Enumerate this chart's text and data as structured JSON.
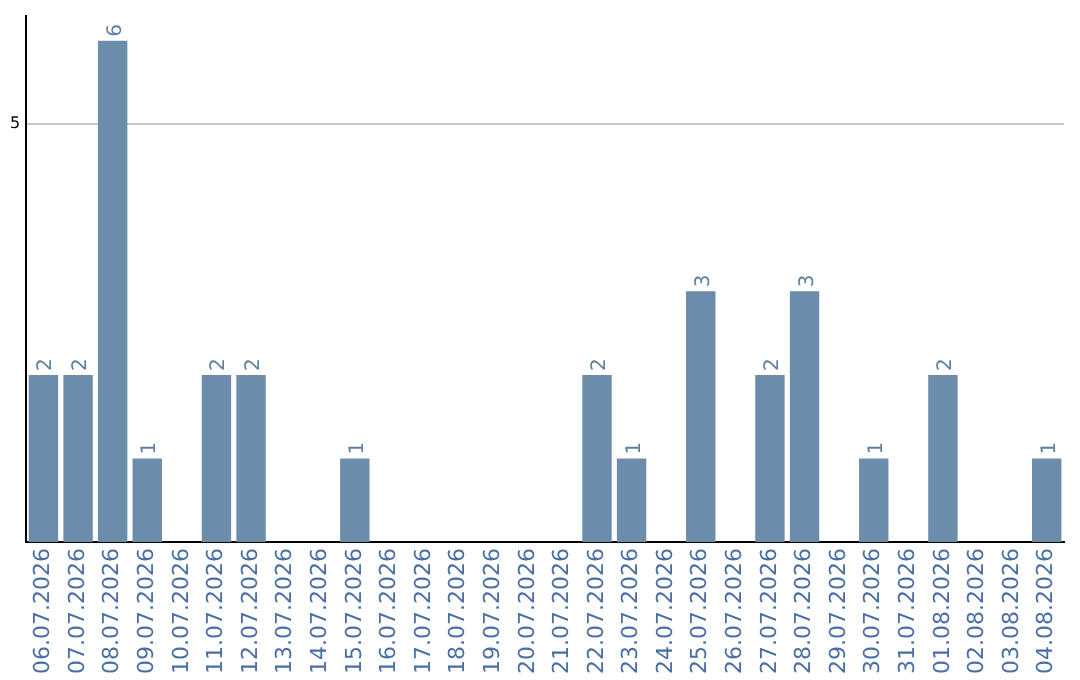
{
  "chart_data": {
    "type": "bar",
    "categories": [
      "06.07.2026",
      "07.07.2026",
      "08.07.2026",
      "09.07.2026",
      "10.07.2026",
      "11.07.2026",
      "12.07.2026",
      "13.07.2026",
      "14.07.2026",
      "15.07.2026",
      "16.07.2026",
      "17.07.2026",
      "18.07.2026",
      "19.07.2026",
      "20.07.2026",
      "21.07.2026",
      "22.07.2026",
      "23.07.2026",
      "24.07.2026",
      "25.07.2026",
      "26.07.2026",
      "27.07.2026",
      "28.07.2026",
      "29.07.2026",
      "30.07.2026",
      "31.07.2026",
      "01.08.2026",
      "02.08.2026",
      "03.08.2026",
      "04.08.2026"
    ],
    "values": [
      2,
      2,
      6,
      1,
      0,
      2,
      2,
      0,
      0,
      1,
      0,
      0,
      0,
      0,
      0,
      0,
      2,
      1,
      0,
      3,
      0,
      2,
      3,
      0,
      1,
      0,
      2,
      0,
      0,
      1
    ],
    "value_labels": [
      "2",
      "2",
      "6",
      "1",
      null,
      "2",
      "2",
      null,
      null,
      "1",
      null,
      null,
      null,
      null,
      null,
      null,
      "2",
      "1",
      null,
      "3",
      null,
      "2",
      "3",
      null,
      "1",
      null,
      "2",
      null,
      null,
      "1"
    ],
    "color": "#6b8cab",
    "ylim": [
      0,
      6.3
    ],
    "yticks": [
      5
    ],
    "grid": "y",
    "legend": false
  }
}
